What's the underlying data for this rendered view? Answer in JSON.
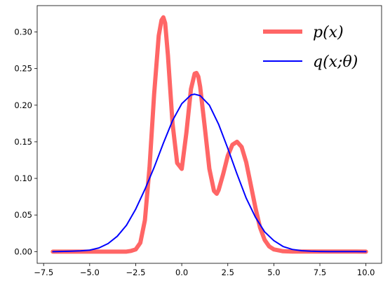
{
  "chart_data": {
    "type": "line",
    "title": "",
    "xlabel": "",
    "ylabel": "",
    "xlim": [
      -7.85,
      10.85
    ],
    "ylim": [
      -0.016,
      0.336
    ],
    "xticks": [
      -7.5,
      -5.0,
      -2.5,
      0.0,
      2.5,
      5.0,
      7.5,
      10.0
    ],
    "xtick_labels": [
      "−7.5",
      "−5.0",
      "−2.5",
      "0.0",
      "2.5",
      "5.0",
      "7.5",
      "10.0"
    ],
    "yticks": [
      0.0,
      0.05,
      0.1,
      0.15,
      0.2,
      0.25,
      0.3
    ],
    "ytick_labels": [
      "0.00",
      "0.05",
      "0.10",
      "0.15",
      "0.20",
      "0.25",
      "0.30"
    ],
    "grid": false,
    "legend_position": "top-right",
    "series": [
      {
        "name": "p(x)",
        "color": "#ff6666",
        "style": "thick",
        "x": [
          -7.0,
          -3.0,
          -2.75,
          -2.5,
          -2.25,
          -2.0,
          -1.75,
          -1.5,
          -1.25,
          -1.1,
          -1.0,
          -0.9,
          -0.75,
          -0.5,
          -0.25,
          0.0,
          0.25,
          0.5,
          0.7,
          0.8,
          0.9,
          1.0,
          1.25,
          1.5,
          1.75,
          1.9,
          2.0,
          2.25,
          2.5,
          2.75,
          3.0,
          3.25,
          3.5,
          3.75,
          4.0,
          4.25,
          4.5,
          4.75,
          5.0,
          5.5,
          6.0,
          10.0
        ],
        "values": [
          0.0,
          0.0,
          0.001,
          0.003,
          0.012,
          0.043,
          0.115,
          0.215,
          0.295,
          0.316,
          0.32,
          0.312,
          0.268,
          0.175,
          0.121,
          0.113,
          0.162,
          0.222,
          0.243,
          0.244,
          0.239,
          0.225,
          0.17,
          0.113,
          0.083,
          0.079,
          0.084,
          0.106,
          0.131,
          0.146,
          0.15,
          0.143,
          0.122,
          0.091,
          0.06,
          0.033,
          0.016,
          0.007,
          0.003,
          0.0005,
          0.0001,
          0.0
        ]
      },
      {
        "name": "q(x;θ)",
        "color": "#0000ff",
        "style": "normal",
        "x": [
          -7.0,
          -6.0,
          -5.5,
          -5.0,
          -4.5,
          -4.0,
          -3.5,
          -3.0,
          -2.5,
          -2.0,
          -1.5,
          -1.0,
          -0.5,
          0.0,
          0.5,
          0.7,
          1.0,
          1.5,
          2.0,
          2.5,
          3.0,
          3.5,
          4.0,
          4.5,
          5.0,
          5.5,
          6.0,
          6.5,
          7.0,
          7.5,
          8.0,
          10.0
        ],
        "values": [
          0.0,
          0.0005,
          0.001,
          0.002,
          0.005,
          0.011,
          0.021,
          0.036,
          0.058,
          0.085,
          0.115,
          0.148,
          0.179,
          0.202,
          0.214,
          0.215,
          0.213,
          0.2,
          0.174,
          0.141,
          0.106,
          0.073,
          0.047,
          0.027,
          0.015,
          0.007,
          0.003,
          0.0013,
          0.0005,
          0.0002,
          0.0001,
          0.0
        ]
      }
    ]
  }
}
